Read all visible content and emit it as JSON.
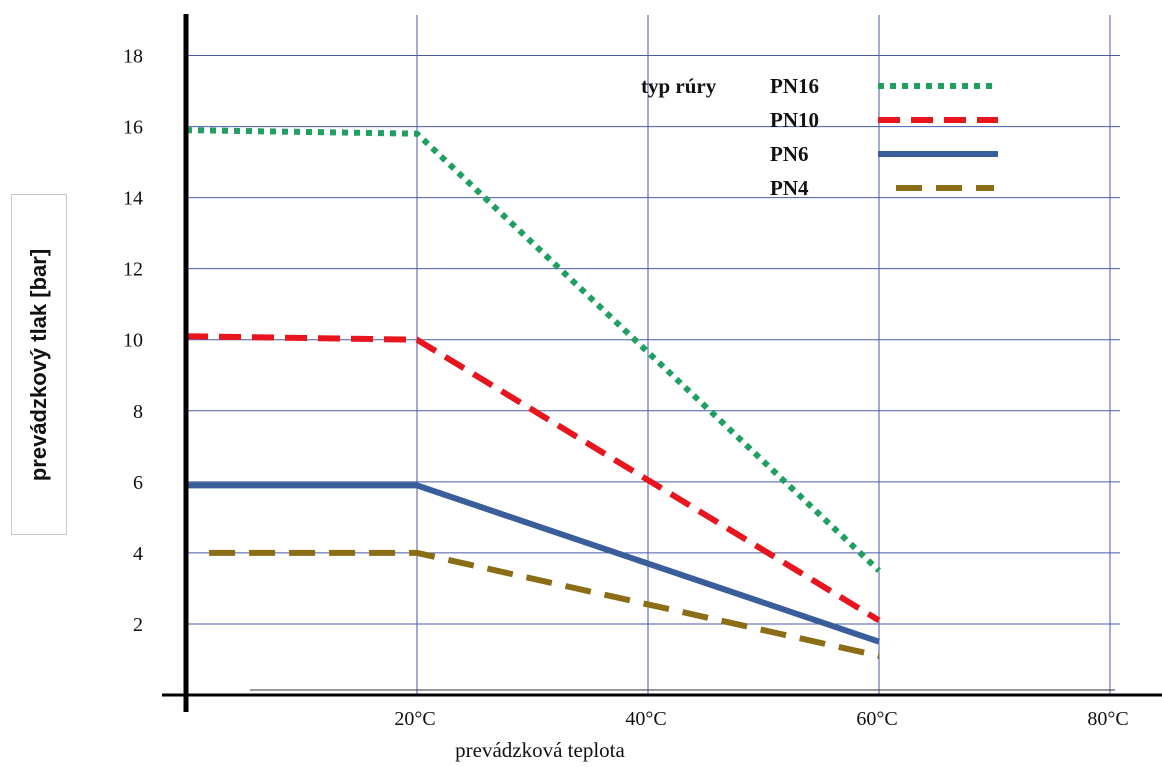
{
  "chart_data": {
    "type": "line",
    "xlabel": "prevádzková teplota",
    "ylabel": "prevádzkový tlak [bar]",
    "xlim": [
      0,
      80
    ],
    "ylim": [
      0,
      19
    ],
    "x_ticks": [
      {
        "value": 20,
        "label": "20°C"
      },
      {
        "value": 40,
        "label": "40°C"
      },
      {
        "value": 60,
        "label": "60°C"
      },
      {
        "value": 80,
        "label": "80°C"
      }
    ],
    "y_ticks": [
      {
        "value": 2,
        "label": "2"
      },
      {
        "value": 4,
        "label": "4"
      },
      {
        "value": 6,
        "label": "6"
      },
      {
        "value": 8,
        "label": "8"
      },
      {
        "value": 10,
        "label": "10"
      },
      {
        "value": 12,
        "label": "12"
      },
      {
        "value": 14,
        "label": "14"
      },
      {
        "value": 16,
        "label": "16"
      },
      {
        "value": 18,
        "label": "18"
      }
    ],
    "grid": true,
    "legend_title": "typ rúry",
    "legend_position": "top-right",
    "series": [
      {
        "name": "PN16",
        "color": "#20a060",
        "style": "dotted",
        "points": [
          [
            0,
            15.9
          ],
          [
            20,
            15.8
          ],
          [
            60,
            3.5
          ]
        ]
      },
      {
        "name": "PN10",
        "color": "#e8141e",
        "style": "dashed",
        "points": [
          [
            0,
            10.1
          ],
          [
            20,
            10.0
          ],
          [
            60,
            2.1
          ]
        ]
      },
      {
        "name": "PN6",
        "color": "#3a5d9c",
        "style": "solid",
        "points": [
          [
            0,
            5.9
          ],
          [
            20,
            5.9
          ],
          [
            60,
            1.5
          ]
        ]
      },
      {
        "name": "PN4",
        "color": "#8a6d14",
        "style": "longdash",
        "points": [
          [
            2,
            4.0
          ],
          [
            20,
            4.0
          ],
          [
            60,
            1.1
          ]
        ]
      }
    ]
  }
}
